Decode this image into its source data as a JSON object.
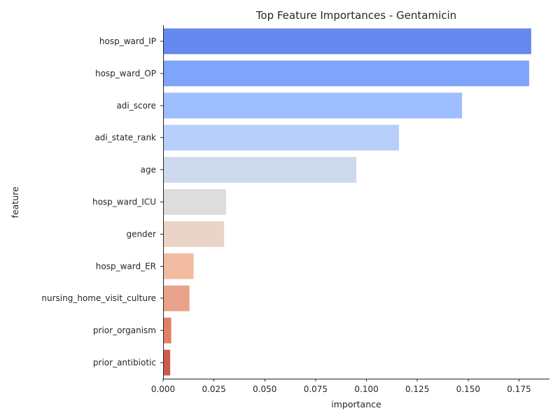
{
  "chart_data": {
    "type": "bar",
    "orientation": "horizontal",
    "title": "Top Feature Importances - Gentamicin",
    "xlabel": "importance",
    "ylabel": "feature",
    "xlim": [
      0,
      0.19
    ],
    "xticks": [
      "0.000",
      "0.025",
      "0.050",
      "0.075",
      "0.100",
      "0.125",
      "0.150",
      "0.175"
    ],
    "grid": false,
    "categories": [
      "hosp_ward_IP",
      "hosp_ward_OP",
      "adi_score",
      "adi_state_rank",
      "age",
      "hosp_ward_ICU",
      "gender",
      "hosp_ward_ER",
      "nursing_home_visit_culture",
      "prior_organism",
      "prior_antibiotic"
    ],
    "values": [
      0.181,
      0.18,
      0.147,
      0.116,
      0.095,
      0.031,
      0.03,
      0.015,
      0.013,
      0.004,
      0.0035
    ],
    "colors": [
      "#6788ee",
      "#81a4fb",
      "#9ebeff",
      "#b7cff9",
      "#cdd9ec",
      "#dddddd",
      "#ead4c8",
      "#f1bca1",
      "#e9a38b",
      "#e08066",
      "#cd5b4d"
    ]
  }
}
